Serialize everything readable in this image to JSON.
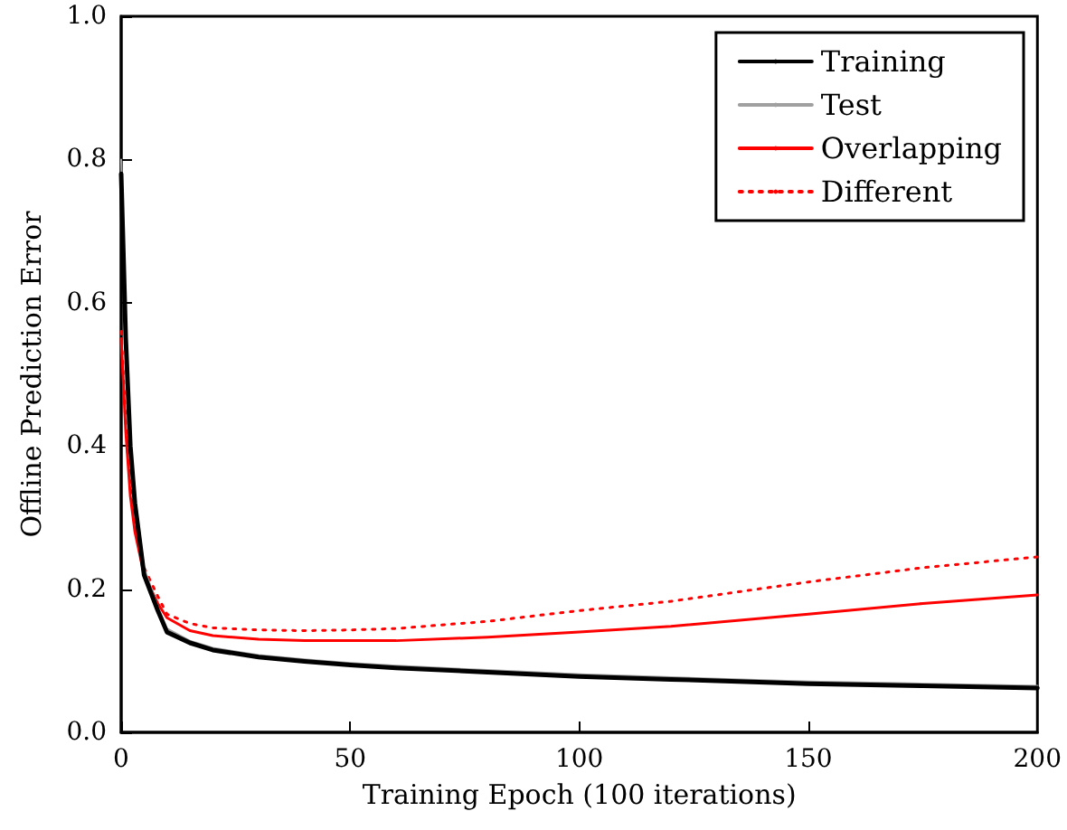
{
  "chart_data": {
    "type": "line",
    "xlabel": "Training Epoch (100 iterations)",
    "ylabel": "Offline Prediction Error",
    "x": [
      0,
      1,
      2,
      3,
      5,
      8,
      10,
      15,
      20,
      30,
      40,
      50,
      60,
      80,
      100,
      120,
      150,
      175,
      200
    ],
    "series": [
      {
        "name": "Training",
        "color": "#000000",
        "values": [
          0.78,
          0.55,
          0.4,
          0.32,
          0.22,
          0.17,
          0.14,
          0.125,
          0.115,
          0.105,
          0.099,
          0.094,
          0.09,
          0.084,
          0.078,
          0.074,
          0.068,
          0.065,
          0.062
        ]
      },
      {
        "name": "Test",
        "color": "#a0a0a0",
        "values": [
          0.8,
          0.56,
          0.41,
          0.33,
          0.23,
          0.175,
          0.145,
          0.128,
          0.118,
          0.108,
          0.102,
          0.097,
          0.093,
          0.087,
          0.081,
          0.077,
          0.071,
          0.068,
          0.065
        ]
      },
      {
        "name": "Overlapping",
        "color": "#ff0000",
        "values": [
          0.55,
          0.42,
          0.33,
          0.28,
          0.22,
          0.18,
          0.16,
          0.142,
          0.135,
          0.13,
          0.128,
          0.128,
          0.128,
          0.133,
          0.14,
          0.148,
          0.165,
          0.18,
          0.192
        ]
      },
      {
        "name": "Different",
        "color": "#ff0000",
        "line_style": "dotted",
        "values": [
          0.56,
          0.43,
          0.34,
          0.29,
          0.23,
          0.19,
          0.165,
          0.152,
          0.146,
          0.143,
          0.142,
          0.143,
          0.145,
          0.155,
          0.17,
          0.183,
          0.21,
          0.23,
          0.245
        ]
      }
    ],
    "xlim": [
      0,
      200
    ],
    "xticks": [
      0,
      50,
      100,
      150,
      200
    ],
    "ylim": [
      0,
      1
    ],
    "yticks": [
      {
        "value": 0,
        "label": "0.0"
      },
      {
        "value": 0.2,
        "label": "0.2"
      },
      {
        "value": 0.4,
        "label": "0.4"
      },
      {
        "value": 0.6,
        "label": "0.6"
      },
      {
        "value": 0.8,
        "label": "0.8"
      },
      {
        "value": 1,
        "label": "1.0"
      }
    ],
    "grid": false,
    "legend": "top right",
    "marker": "none",
    "line_style": "solid"
  }
}
